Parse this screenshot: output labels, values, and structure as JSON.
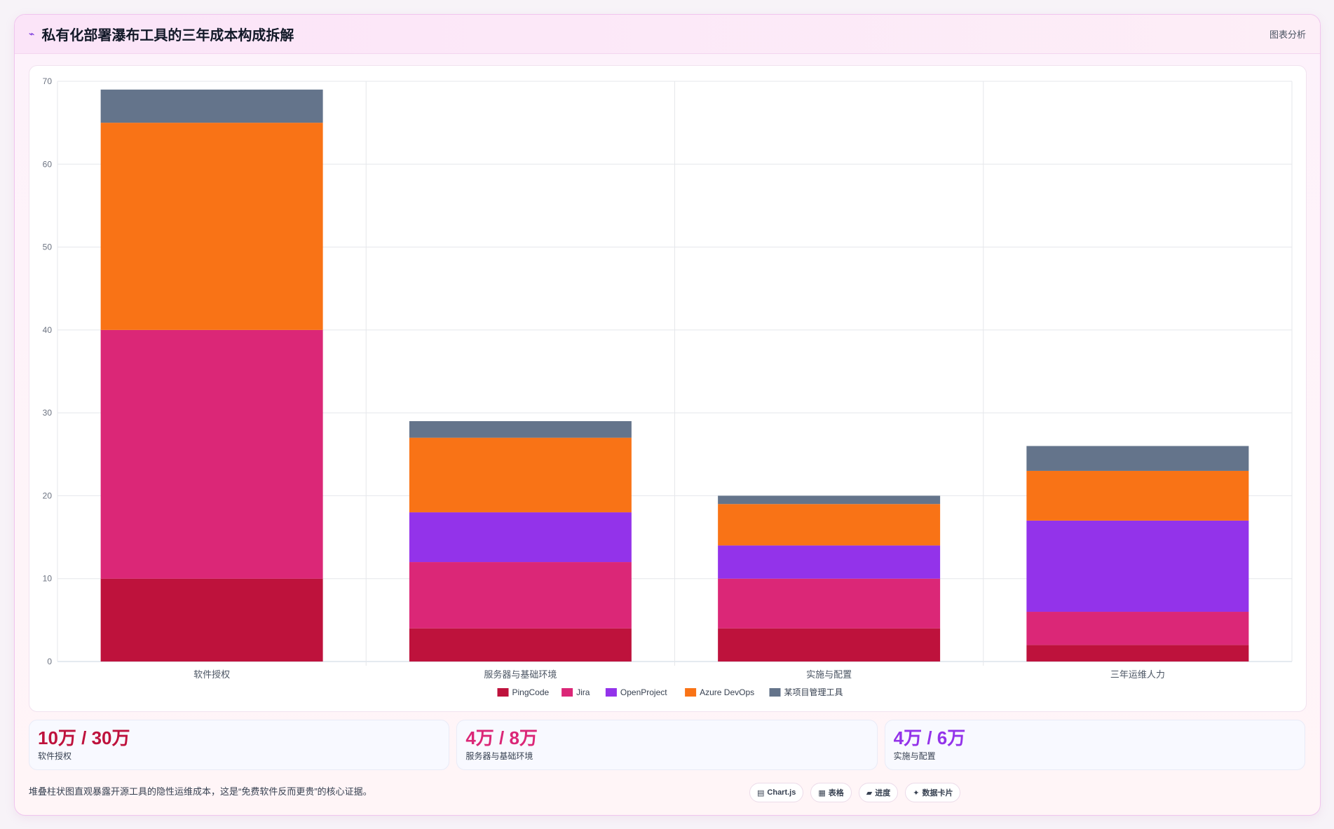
{
  "header": {
    "title": "私有化部署瀑布工具的三年成本构成拆解",
    "right": "图表分析",
    "icon": "chart-icon"
  },
  "chart_data": {
    "type": "bar",
    "stacked": true,
    "categories": [
      "软件授权",
      "服务器与基础环境",
      "实施与配置",
      "三年运维人力"
    ],
    "series": [
      {
        "name": "PingCode",
        "color": "#be123c",
        "values": [
          10,
          4,
          4,
          2
        ]
      },
      {
        "name": "Jira",
        "color": "#db2777",
        "values": [
          30,
          8,
          6,
          4
        ]
      },
      {
        "name": "OpenProject",
        "color": "#9333ea",
        "values": [
          0,
          6,
          4,
          11
        ]
      },
      {
        "name": "Azure DevOps",
        "color": "#f97316",
        "values": [
          25,
          9,
          5,
          6
        ]
      },
      {
        "name": "某项目管理工具",
        "color": "#64748b",
        "values": [
          4,
          2,
          1,
          3
        ]
      }
    ],
    "ylim": [
      0,
      70
    ],
    "yticks": [
      0,
      10,
      20,
      30,
      40,
      50,
      60,
      70
    ],
    "grid": true,
    "legend": "bottom"
  },
  "stats": [
    {
      "value": "10万 / 30万",
      "label": "软件授权",
      "color": "#be123c"
    },
    {
      "value": "4万 / 8万",
      "label": "服务器与基础环境",
      "color": "#db2777"
    },
    {
      "value": "4万 / 6万",
      "label": "实施与配置",
      "color": "#9333ea"
    }
  ],
  "footer": {
    "note": "堆叠柱状图直观暴露开源工具的隐性运维成本，这是“免费软件反而更贵”的核心证据。",
    "pills": [
      {
        "icon": "▤",
        "label": "Chart.js"
      },
      {
        "icon": "▦",
        "label": "表格"
      },
      {
        "icon": "▰",
        "label": "进度"
      },
      {
        "icon": "✦",
        "label": "数据卡片"
      }
    ]
  }
}
